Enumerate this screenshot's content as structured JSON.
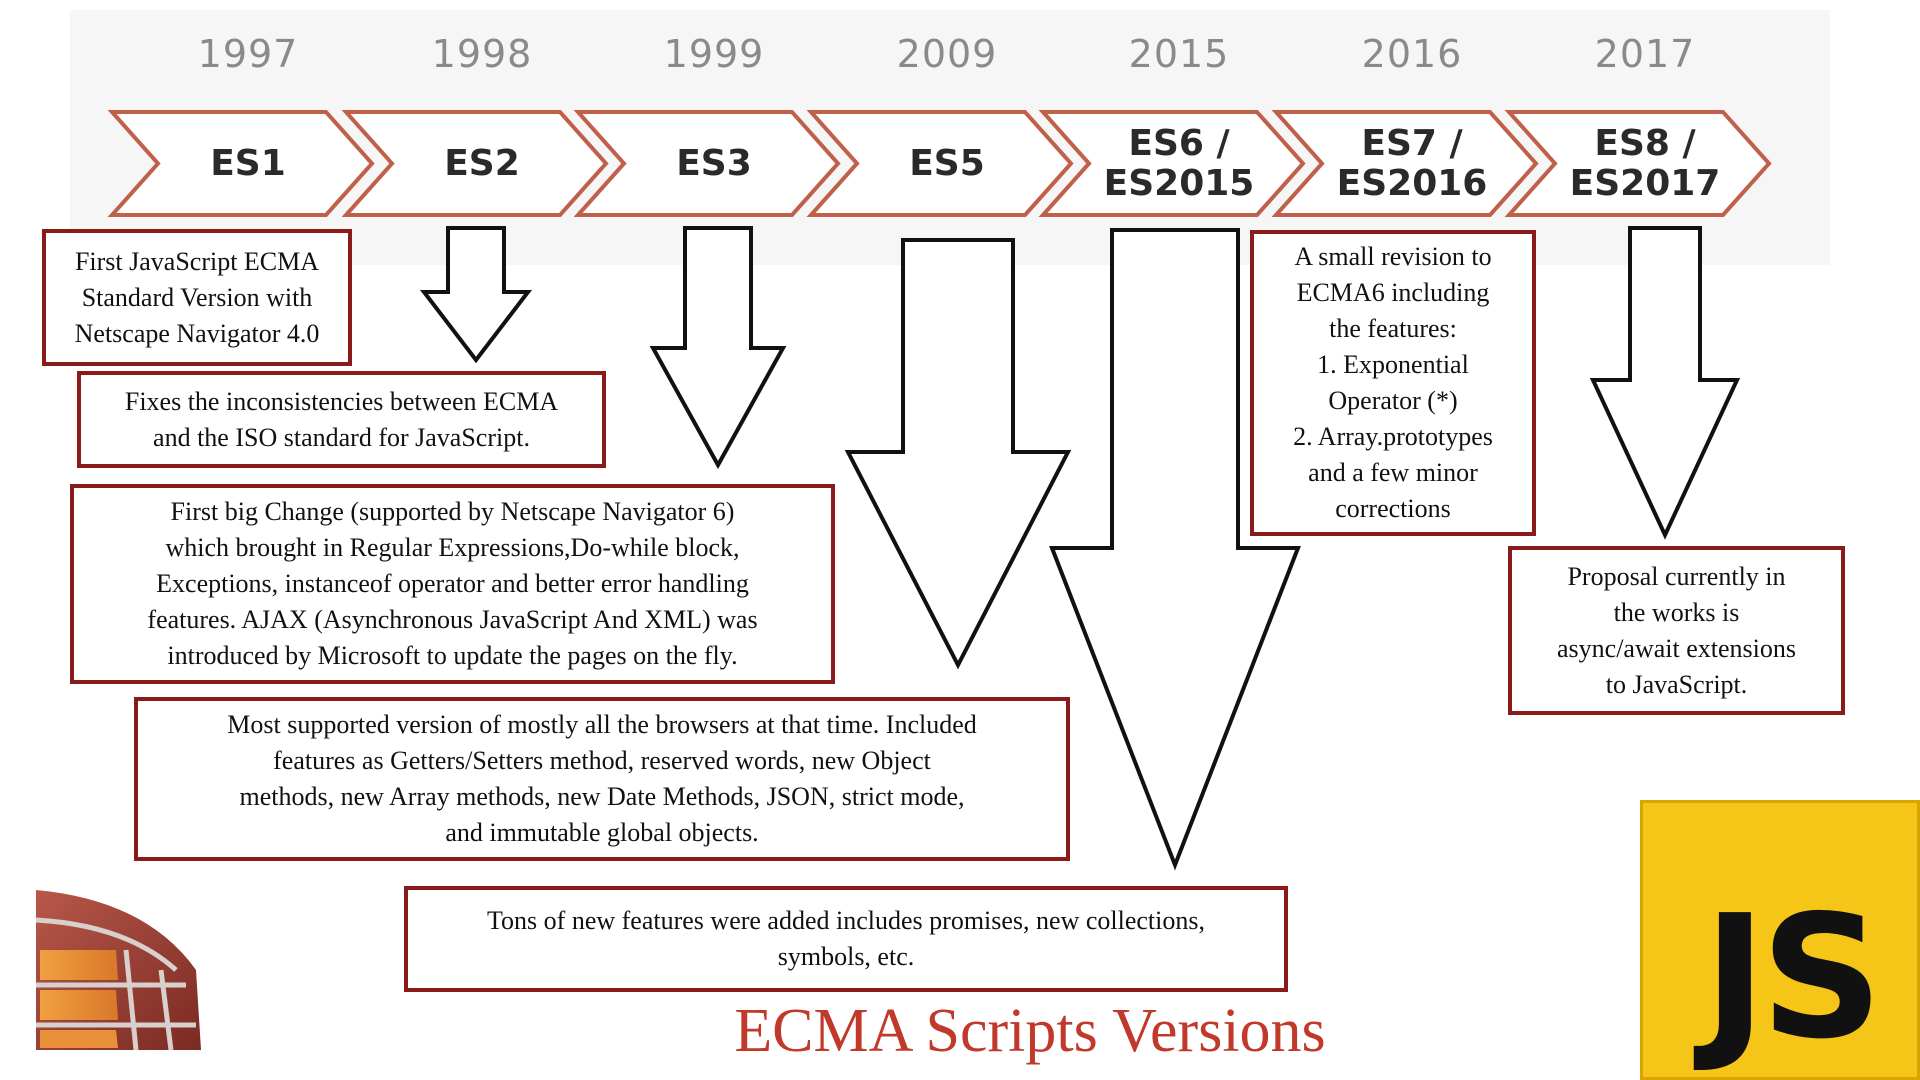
{
  "title": "ECMA Scripts Versions",
  "versions": [
    {
      "year": "1997",
      "name": [
        "ES1"
      ]
    },
    {
      "year": "1998",
      "name": [
        "ES2"
      ]
    },
    {
      "year": "1999",
      "name": [
        "ES3"
      ]
    },
    {
      "year": "2009",
      "name": [
        "ES5"
      ]
    },
    {
      "year": "2015",
      "name": [
        "ES6 /",
        "ES2015"
      ]
    },
    {
      "year": "2016",
      "name": [
        "ES7 /",
        "ES2016"
      ]
    },
    {
      "year": "2017",
      "name": [
        "ES8 /",
        "ES2017"
      ]
    }
  ],
  "descriptions": {
    "es1": [
      "First JavaScript ECMA",
      "Standard Version with",
      "Netscape Navigator 4.0"
    ],
    "es2": [
      "Fixes the inconsistencies between ECMA",
      "and the ISO standard for JavaScript."
    ],
    "es3": [
      "First big Change (supported by Netscape Navigator 6)",
      "which brought in Regular Expressions,Do-while block,",
      "Exceptions, instanceof operator and better error handling",
      "features. AJAX (Asynchronous JavaScript And XML) was",
      "introduced by Microsoft to update the pages on the fly."
    ],
    "es5": [
      "Most supported version of mostly all the browsers at that time. Included",
      "features as Getters/Setters method, reserved words, new Object",
      "methods, new Array methods, new Date Methods, JSON, strict mode,",
      "and immutable global objects."
    ],
    "es6": [
      "Tons of new features were added includes promises, new collections,",
      "symbols, etc."
    ],
    "es7": [
      "A small revision to",
      "ECMA6 including",
      "the features:",
      "1. Exponential",
      "Operator (*)",
      "2. Array.prototypes",
      "and a few minor",
      "corrections"
    ],
    "es8": [
      "Proposal currently in",
      "the works is",
      "async/await extensions",
      "to JavaScript."
    ]
  },
  "logo": {
    "text": "JS"
  },
  "colors": {
    "chevron": "#c0604a",
    "box_border": "#8b1a1a",
    "title": "#c0392b",
    "js_yellow": "#f5c518"
  }
}
